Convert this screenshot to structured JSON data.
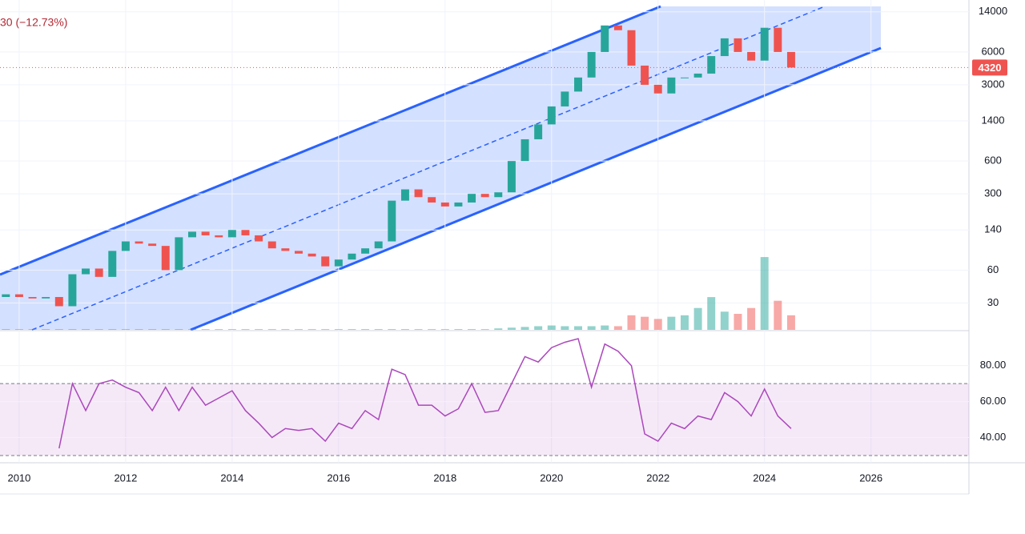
{
  "chart_data": [
    {
      "type": "candlestick",
      "annotation": "30 (−12.73%)",
      "x": [
        2009.75,
        2010,
        2010.25,
        2010.5,
        2010.75,
        2011,
        2011.25,
        2011.5,
        2011.75,
        2012,
        2012.25,
        2012.5,
        2012.75,
        2013,
        2013.25,
        2013.5,
        2013.75,
        2014,
        2014.25,
        2014.5,
        2014.75,
        2015,
        2015.25,
        2015.5,
        2015.75,
        2016,
        2016.25,
        2016.5,
        2016.75,
        2017,
        2017.25,
        2017.5,
        2017.75,
        2018,
        2018.25,
        2018.5,
        2018.75,
        2019,
        2019.25,
        2019.5,
        2019.75,
        2020,
        2020.25,
        2020.5,
        2020.75,
        2021,
        2021.25,
        2021.5,
        2021.75,
        2022,
        2022.25,
        2022.5,
        2022.75,
        2023,
        2023.25,
        2023.5,
        2023.75,
        2024,
        2024.25,
        2024.5
      ],
      "open": [
        34,
        36,
        34,
        33,
        34,
        28,
        55,
        62,
        52,
        90,
        110,
        105,
        100,
        60,
        120,
        135,
        125,
        120,
        140,
        125,
        110,
        95,
        90,
        85,
        80,
        65,
        75,
        85,
        95,
        110,
        260,
        330,
        280,
        250,
        230,
        250,
        300,
        280,
        310,
        600,
        950,
        1300,
        1900,
        2600,
        3500,
        6000,
        10500,
        9500,
        4500,
        3000,
        2500,
        3500,
        3500,
        3800,
        5500,
        8000,
        6000,
        5000,
        10000,
        6000
      ],
      "close": [
        36,
        34,
        33,
        34,
        28,
        55,
        62,
        52,
        90,
        110,
        105,
        100,
        60,
        120,
        135,
        125,
        120,
        140,
        125,
        110,
        95,
        90,
        85,
        80,
        65,
        75,
        85,
        95,
        110,
        260,
        330,
        280,
        250,
        230,
        250,
        300,
        280,
        310,
        600,
        950,
        1300,
        1900,
        2600,
        3500,
        6000,
        10500,
        9500,
        4500,
        3000,
        2500,
        3500,
        3500,
        3800,
        5500,
        8000,
        6000,
        5000,
        10000,
        6000,
        4320
      ],
      "up_color": "#26a69a",
      "down_color": "#ef5350",
      "log_scale": true,
      "ylim": [
        17,
        15700
      ],
      "yticks": [
        30,
        60,
        140,
        300,
        600,
        1400,
        3000,
        6000,
        14000
      ],
      "xlim": [
        2009.64,
        2027.84
      ],
      "xticks": [
        2010,
        2012,
        2014,
        2016,
        2018,
        2020,
        2022,
        2024,
        2026
      ],
      "grid": true
    },
    {
      "type": "bar",
      "x": [
        2009.75,
        2010,
        2010.25,
        2010.5,
        2010.75,
        2011,
        2011.25,
        2011.5,
        2011.75,
        2012,
        2012.25,
        2012.5,
        2012.75,
        2013,
        2013.25,
        2013.5,
        2013.75,
        2014,
        2014.25,
        2014.5,
        2014.75,
        2015,
        2015.25,
        2015.5,
        2015.75,
        2016,
        2016.25,
        2016.5,
        2016.75,
        2017,
        2017.25,
        2017.5,
        2017.75,
        2018,
        2018.25,
        2018.5,
        2018.75,
        2019,
        2019.25,
        2019.5,
        2019.75,
        2020,
        2020.25,
        2020.5,
        2020.75,
        2021,
        2021.25,
        2021.5,
        2021.75,
        2022,
        2022.25,
        2022.5,
        2022.75,
        2023,
        2023.25,
        2023.5,
        2023.75,
        2024,
        2024.25,
        2024.5
      ],
      "values": [
        1,
        1,
        1,
        1,
        1,
        1,
        1,
        1,
        1,
        1,
        1,
        1,
        1,
        1,
        1,
        1,
        1,
        1,
        1,
        1,
        1,
        1,
        1,
        1,
        1,
        1,
        1,
        1,
        1,
        1,
        1,
        1,
        1,
        1,
        1,
        1,
        1,
        2,
        3,
        4,
        5,
        6,
        5,
        5,
        5,
        6,
        5,
        20,
        18,
        15,
        18,
        20,
        30,
        45,
        25,
        22,
        30,
        100,
        40,
        20
      ],
      "ylim": [
        0,
        110
      ]
    },
    {
      "type": "line",
      "x": [
        2010.75,
        2011,
        2011.25,
        2011.5,
        2011.75,
        2012,
        2012.25,
        2012.5,
        2012.75,
        2013,
        2013.25,
        2013.5,
        2013.75,
        2014,
        2014.25,
        2014.5,
        2014.75,
        2015,
        2015.25,
        2015.5,
        2015.75,
        2016,
        2016.25,
        2016.5,
        2016.75,
        2017,
        2017.25,
        2017.5,
        2017.75,
        2018,
        2018.25,
        2018.5,
        2018.75,
        2019,
        2019.25,
        2019.5,
        2019.75,
        2020,
        2020.25,
        2020.5,
        2020.75,
        2021,
        2021.25,
        2021.5,
        2021.75,
        2022,
        2022.25,
        2022.5,
        2022.75,
        2023,
        2023.25,
        2023.5,
        2023.75,
        2024,
        2024.25,
        2024.5
      ],
      "values": [
        34,
        70,
        55,
        70,
        72,
        68,
        65,
        55,
        68,
        55,
        68,
        58,
        62,
        66,
        55,
        48,
        40,
        45,
        44,
        45,
        38,
        48,
        45,
        55,
        50,
        78,
        75,
        58,
        58,
        52,
        56,
        70,
        54,
        55,
        70,
        85,
        82,
        90,
        93,
        95,
        68,
        92,
        88,
        80,
        42,
        38,
        48,
        45,
        52,
        50,
        65,
        60,
        52,
        67,
        52,
        45
      ],
      "color": "#ab47bc",
      "bands": [
        30,
        70
      ],
      "ylim": [
        26,
        99
      ],
      "yticks": [
        {
          "value": 40,
          "label": "40.00"
        },
        {
          "value": 60,
          "label": "60.00"
        },
        {
          "value": 80,
          "label": "80.00"
        }
      ]
    }
  ]
}
